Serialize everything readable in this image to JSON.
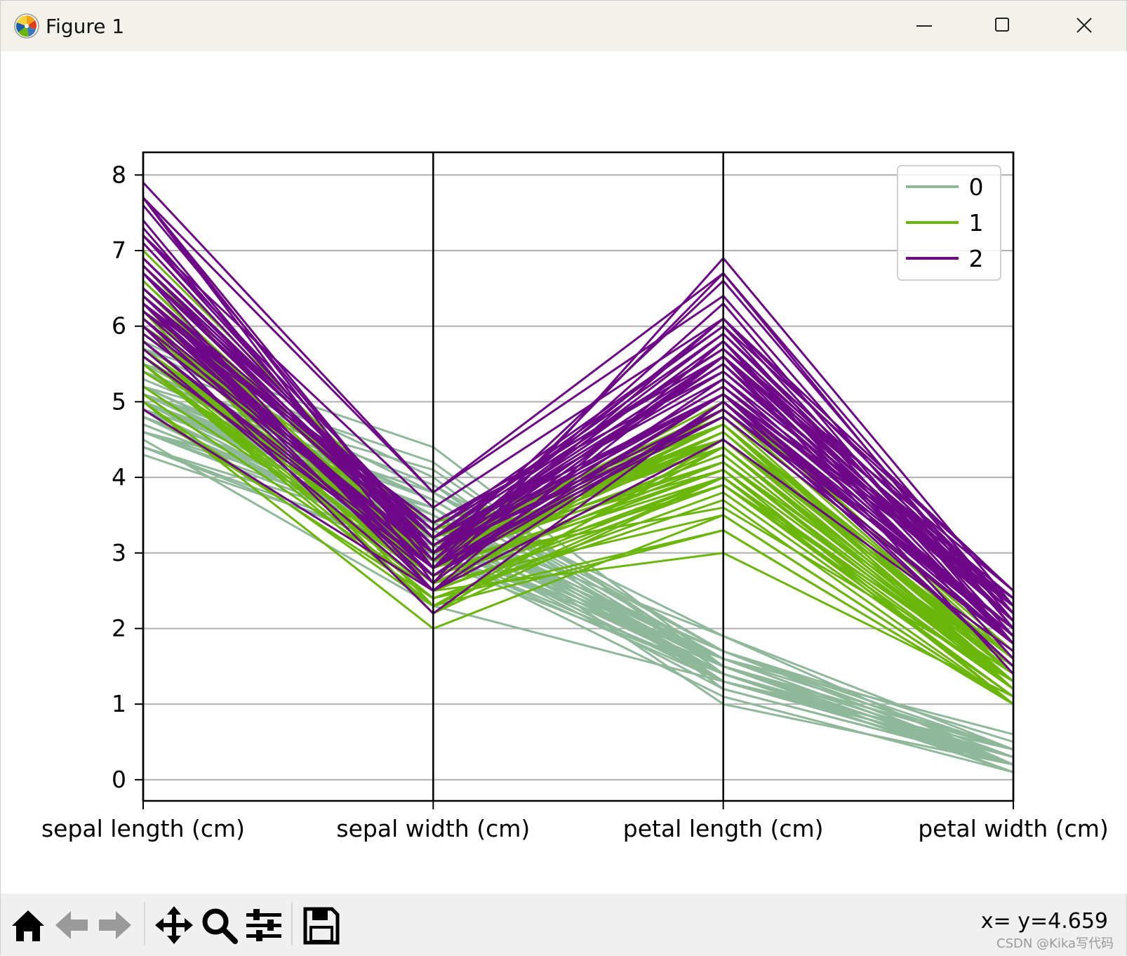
{
  "window": {
    "title": "Figure 1"
  },
  "toolbar": {
    "buttons": [
      "home-icon",
      "back-icon",
      "forward-icon",
      "pan-icon",
      "zoom-icon",
      "configure-icon",
      "save-icon"
    ],
    "coords_text": "x= y=4.659"
  },
  "watermark": "CSDN @Kika写代码",
  "chart_data": {
    "type": "parallel_coordinates",
    "title": "",
    "axes": [
      "sepal length (cm)",
      "sepal width (cm)",
      "petal length (cm)",
      "petal width (cm)"
    ],
    "ylim": [
      -0.28,
      8.3
    ],
    "yticks": [
      0,
      1,
      2,
      3,
      4,
      5,
      6,
      7,
      8
    ],
    "grid": true,
    "legend": {
      "placement": "top-right",
      "entries": [
        "0",
        "1",
        "2"
      ]
    },
    "colors": {
      "0": "#8fb89a",
      "1": "#6ab60a",
      "2": "#6e0888"
    },
    "series": [
      {
        "name": "0",
        "color": "#8fb89a",
        "lines": [
          [
            5.1,
            3.5,
            1.4,
            0.2
          ],
          [
            4.9,
            3.0,
            1.4,
            0.2
          ],
          [
            4.7,
            3.2,
            1.3,
            0.2
          ],
          [
            4.6,
            3.1,
            1.5,
            0.2
          ],
          [
            5.0,
            3.6,
            1.4,
            0.2
          ],
          [
            5.4,
            3.9,
            1.7,
            0.4
          ],
          [
            4.6,
            3.4,
            1.4,
            0.3
          ],
          [
            5.0,
            3.4,
            1.5,
            0.2
          ],
          [
            4.4,
            2.9,
            1.4,
            0.2
          ],
          [
            4.9,
            3.1,
            1.5,
            0.1
          ],
          [
            5.4,
            3.7,
            1.5,
            0.2
          ],
          [
            4.8,
            3.4,
            1.6,
            0.2
          ],
          [
            4.8,
            3.0,
            1.4,
            0.1
          ],
          [
            4.3,
            3.0,
            1.1,
            0.1
          ],
          [
            5.8,
            4.0,
            1.2,
            0.2
          ],
          [
            5.7,
            4.4,
            1.5,
            0.4
          ],
          [
            5.4,
            3.9,
            1.3,
            0.4
          ],
          [
            5.1,
            3.5,
            1.4,
            0.3
          ],
          [
            5.7,
            3.8,
            1.7,
            0.3
          ],
          [
            5.1,
            3.8,
            1.5,
            0.3
          ],
          [
            5.4,
            3.4,
            1.7,
            0.2
          ],
          [
            5.1,
            3.7,
            1.5,
            0.4
          ],
          [
            4.6,
            3.6,
            1.0,
            0.2
          ],
          [
            5.1,
            3.3,
            1.7,
            0.5
          ],
          [
            4.8,
            3.4,
            1.9,
            0.2
          ],
          [
            5.0,
            3.0,
            1.6,
            0.2
          ],
          [
            5.0,
            3.4,
            1.6,
            0.4
          ],
          [
            5.2,
            3.5,
            1.5,
            0.2
          ],
          [
            5.2,
            3.4,
            1.4,
            0.2
          ],
          [
            4.7,
            3.2,
            1.6,
            0.2
          ],
          [
            4.8,
            3.1,
            1.6,
            0.2
          ],
          [
            5.4,
            3.4,
            1.5,
            0.4
          ],
          [
            5.2,
            4.1,
            1.5,
            0.1
          ],
          [
            5.5,
            4.2,
            1.4,
            0.2
          ],
          [
            4.9,
            3.1,
            1.5,
            0.2
          ],
          [
            5.0,
            3.2,
            1.2,
            0.2
          ],
          [
            5.5,
            3.5,
            1.3,
            0.2
          ],
          [
            4.9,
            3.6,
            1.4,
            0.1
          ],
          [
            4.4,
            3.0,
            1.3,
            0.2
          ],
          [
            5.1,
            3.4,
            1.5,
            0.2
          ],
          [
            5.0,
            3.5,
            1.3,
            0.3
          ],
          [
            4.5,
            2.3,
            1.3,
            0.3
          ],
          [
            4.4,
            3.2,
            1.3,
            0.2
          ],
          [
            5.0,
            3.5,
            1.6,
            0.6
          ],
          [
            5.1,
            3.8,
            1.9,
            0.4
          ],
          [
            4.8,
            3.0,
            1.4,
            0.3
          ],
          [
            5.1,
            3.8,
            1.6,
            0.2
          ],
          [
            4.6,
            3.2,
            1.4,
            0.2
          ],
          [
            5.3,
            3.7,
            1.5,
            0.2
          ],
          [
            5.0,
            3.3,
            1.4,
            0.2
          ]
        ]
      },
      {
        "name": "1",
        "color": "#6ab60a",
        "lines": [
          [
            7.0,
            3.2,
            4.7,
            1.4
          ],
          [
            6.4,
            3.2,
            4.5,
            1.5
          ],
          [
            6.9,
            3.1,
            4.9,
            1.5
          ],
          [
            5.5,
            2.3,
            4.0,
            1.3
          ],
          [
            6.5,
            2.8,
            4.6,
            1.5
          ],
          [
            5.7,
            2.8,
            4.5,
            1.3
          ],
          [
            6.3,
            3.3,
            4.7,
            1.6
          ],
          [
            4.9,
            2.4,
            3.3,
            1.0
          ],
          [
            6.6,
            2.9,
            4.6,
            1.3
          ],
          [
            5.2,
            2.7,
            3.9,
            1.4
          ],
          [
            5.0,
            2.0,
            3.5,
            1.0
          ],
          [
            5.9,
            3.0,
            4.2,
            1.5
          ],
          [
            6.0,
            2.2,
            4.0,
            1.0
          ],
          [
            6.1,
            2.9,
            4.7,
            1.4
          ],
          [
            5.6,
            2.9,
            3.6,
            1.3
          ],
          [
            6.7,
            3.1,
            4.4,
            1.4
          ],
          [
            5.6,
            3.0,
            4.5,
            1.5
          ],
          [
            5.8,
            2.7,
            4.1,
            1.0
          ],
          [
            6.2,
            2.2,
            4.5,
            1.5
          ],
          [
            5.6,
            2.5,
            3.9,
            1.1
          ],
          [
            5.9,
            3.2,
            4.8,
            1.8
          ],
          [
            6.1,
            2.8,
            4.0,
            1.3
          ],
          [
            6.3,
            2.5,
            4.9,
            1.5
          ],
          [
            6.1,
            2.8,
            4.7,
            1.2
          ],
          [
            6.4,
            2.9,
            4.3,
            1.3
          ],
          [
            6.6,
            3.0,
            4.4,
            1.4
          ],
          [
            6.8,
            2.8,
            4.8,
            1.4
          ],
          [
            6.7,
            3.0,
            5.0,
            1.7
          ],
          [
            6.0,
            2.9,
            4.5,
            1.5
          ],
          [
            5.7,
            2.6,
            3.5,
            1.0
          ],
          [
            5.5,
            2.4,
            3.8,
            1.1
          ],
          [
            5.5,
            2.4,
            3.7,
            1.0
          ],
          [
            5.8,
            2.7,
            3.9,
            1.2
          ],
          [
            6.0,
            2.7,
            5.1,
            1.6
          ],
          [
            5.4,
            3.0,
            4.5,
            1.5
          ],
          [
            6.0,
            3.4,
            4.5,
            1.6
          ],
          [
            6.7,
            3.1,
            4.7,
            1.5
          ],
          [
            6.3,
            2.3,
            4.4,
            1.3
          ],
          [
            5.6,
            3.0,
            4.1,
            1.3
          ],
          [
            5.5,
            2.5,
            4.0,
            1.3
          ],
          [
            5.5,
            2.6,
            4.4,
            1.2
          ],
          [
            6.1,
            3.0,
            4.6,
            1.4
          ],
          [
            5.8,
            2.6,
            4.0,
            1.2
          ],
          [
            5.0,
            2.3,
            3.3,
            1.0
          ],
          [
            5.6,
            2.7,
            4.2,
            1.3
          ],
          [
            5.7,
            3.0,
            4.2,
            1.2
          ],
          [
            5.7,
            2.9,
            4.2,
            1.3
          ],
          [
            6.2,
            2.9,
            4.3,
            1.3
          ],
          [
            5.1,
            2.5,
            3.0,
            1.1
          ],
          [
            5.7,
            2.8,
            4.1,
            1.3
          ]
        ]
      },
      {
        "name": "2",
        "color": "#6e0888",
        "lines": [
          [
            6.3,
            3.3,
            6.0,
            2.5
          ],
          [
            5.8,
            2.7,
            5.1,
            1.9
          ],
          [
            7.1,
            3.0,
            5.9,
            2.1
          ],
          [
            6.3,
            2.9,
            5.6,
            1.8
          ],
          [
            6.5,
            3.0,
            5.8,
            2.2
          ],
          [
            7.6,
            3.0,
            6.6,
            2.1
          ],
          [
            4.9,
            2.5,
            4.5,
            1.7
          ],
          [
            7.3,
            2.9,
            6.3,
            1.8
          ],
          [
            6.7,
            2.5,
            5.8,
            1.8
          ],
          [
            7.2,
            3.6,
            6.1,
            2.5
          ],
          [
            6.5,
            3.2,
            5.1,
            2.0
          ],
          [
            6.4,
            2.7,
            5.3,
            1.9
          ],
          [
            6.8,
            3.0,
            5.5,
            2.1
          ],
          [
            5.7,
            2.5,
            5.0,
            2.0
          ],
          [
            5.8,
            2.8,
            5.1,
            2.4
          ],
          [
            6.4,
            3.2,
            5.3,
            2.3
          ],
          [
            6.5,
            3.0,
            5.5,
            1.8
          ],
          [
            7.7,
            3.8,
            6.7,
            2.2
          ],
          [
            7.7,
            2.6,
            6.9,
            2.3
          ],
          [
            6.0,
            2.2,
            5.0,
            1.5
          ],
          [
            6.9,
            3.2,
            5.7,
            2.3
          ],
          [
            5.6,
            2.8,
            4.9,
            2.0
          ],
          [
            7.7,
            2.8,
            6.7,
            2.0
          ],
          [
            6.3,
            2.7,
            4.9,
            1.8
          ],
          [
            6.7,
            3.3,
            5.7,
            2.1
          ],
          [
            7.2,
            3.2,
            6.0,
            1.8
          ],
          [
            6.2,
            2.8,
            4.8,
            1.8
          ],
          [
            6.1,
            3.0,
            4.9,
            1.8
          ],
          [
            6.4,
            2.8,
            5.6,
            2.1
          ],
          [
            7.2,
            3.0,
            5.8,
            1.6
          ],
          [
            7.4,
            2.8,
            6.1,
            1.9
          ],
          [
            7.9,
            3.8,
            6.4,
            2.0
          ],
          [
            6.4,
            2.8,
            5.6,
            2.2
          ],
          [
            6.3,
            2.8,
            5.1,
            1.5
          ],
          [
            6.1,
            2.6,
            5.6,
            1.4
          ],
          [
            7.7,
            3.0,
            6.1,
            2.3
          ],
          [
            6.3,
            3.4,
            5.6,
            2.4
          ],
          [
            6.4,
            3.1,
            5.5,
            1.8
          ],
          [
            6.0,
            3.0,
            4.8,
            1.8
          ],
          [
            6.9,
            3.1,
            5.4,
            2.1
          ],
          [
            6.7,
            3.1,
            5.6,
            2.4
          ],
          [
            6.9,
            3.1,
            5.1,
            2.3
          ],
          [
            5.8,
            2.7,
            5.1,
            1.9
          ],
          [
            6.8,
            3.2,
            5.9,
            2.3
          ],
          [
            6.7,
            3.3,
            5.7,
            2.5
          ],
          [
            6.7,
            3.0,
            5.2,
            2.3
          ],
          [
            6.3,
            2.5,
            5.0,
            1.9
          ],
          [
            6.5,
            3.0,
            5.2,
            2.0
          ],
          [
            6.2,
            3.4,
            5.4,
            2.3
          ],
          [
            5.9,
            3.0,
            5.1,
            1.8
          ]
        ]
      }
    ]
  }
}
